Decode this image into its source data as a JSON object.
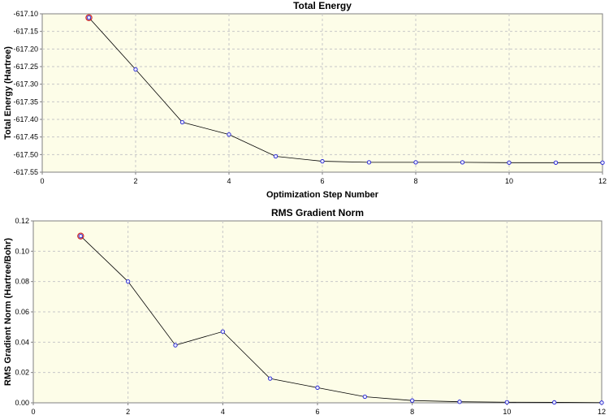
{
  "chart_data": [
    {
      "type": "line",
      "title": "Total Energy",
      "xlabel": "Optimization Step Number",
      "ylabel": "Total Energy (Hartree)",
      "xlim": [
        0,
        12
      ],
      "ylim": [
        -617.55,
        -617.1
      ],
      "xticks": [
        0,
        2,
        4,
        6,
        8,
        10,
        12
      ],
      "yticks": [
        -617.1,
        -617.15,
        -617.2,
        -617.25,
        -617.3,
        -617.35,
        -617.4,
        -617.45,
        -617.5,
        -617.55
      ],
      "ytick_decimals": 2,
      "grid": true,
      "x": [
        1,
        2,
        3,
        4,
        5,
        6,
        7,
        8,
        9,
        10,
        11,
        12
      ],
      "values": [
        -617.111,
        -617.258,
        -617.408,
        -617.443,
        -617.505,
        -617.519,
        -617.522,
        -617.522,
        -617.522,
        -617.523,
        -617.523,
        -617.523
      ],
      "highlighted_point_index": 0
    },
    {
      "type": "line",
      "title": "RMS Gradient Norm",
      "xlabel": "Optimization Step Number",
      "ylabel": "RMS Gradient Norm (Hartree/Bohr)",
      "xlim": [
        0,
        12
      ],
      "ylim": [
        0.0,
        0.12
      ],
      "xticks": [
        0,
        2,
        4,
        6,
        8,
        10,
        12
      ],
      "yticks": [
        0.12,
        0.1,
        0.08,
        0.06,
        0.04,
        0.02,
        0.0
      ],
      "ytick_decimals": 2,
      "grid": true,
      "x": [
        1,
        2,
        3,
        4,
        5,
        6,
        7,
        8,
        9,
        10,
        11,
        12
      ],
      "values": [
        0.11,
        0.08,
        0.038,
        0.047,
        0.016,
        0.01,
        0.004,
        0.0015,
        0.0007,
        0.0004,
        0.0003,
        0.0001
      ],
      "highlighted_point_index": 0
    }
  ]
}
